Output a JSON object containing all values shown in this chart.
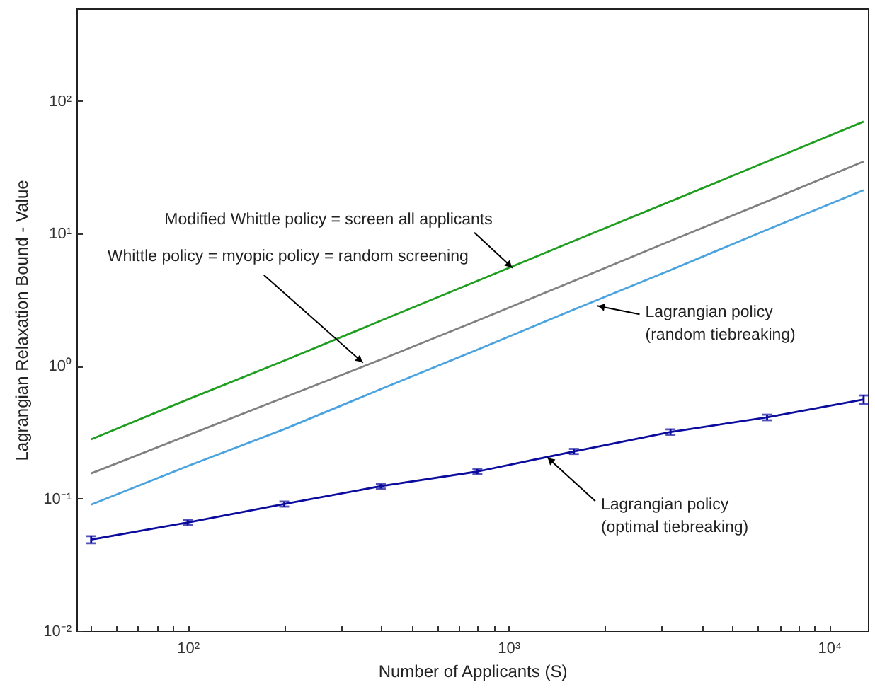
{
  "chart_data": {
    "type": "line",
    "xlabel": "Number of Applicants (S)",
    "ylabel": "Lagrangian Relaxation Bound - Value",
    "log": "xy",
    "legend": false,
    "grid": false,
    "x": [
      50,
      100,
      200,
      400,
      800,
      1600,
      3200,
      6400,
      12800
    ],
    "xlim": [
      45,
      13200
    ],
    "xticks": [
      {
        "value": 50,
        "label": null
      },
      {
        "value": 60,
        "label": null
      },
      {
        "value": 70,
        "label": null
      },
      {
        "value": 80,
        "label": null
      },
      {
        "value": 90,
        "label": null
      },
      {
        "value": 100,
        "label": "10²"
      },
      {
        "value": 200,
        "label": null
      },
      {
        "value": 300,
        "label": null
      },
      {
        "value": 400,
        "label": null
      },
      {
        "value": 500,
        "label": null
      },
      {
        "value": 600,
        "label": null
      },
      {
        "value": 700,
        "label": null
      },
      {
        "value": 800,
        "label": null
      },
      {
        "value": 900,
        "label": null
      },
      {
        "value": 1000,
        "label": "10³"
      },
      {
        "value": 2000,
        "label": null
      },
      {
        "value": 3000,
        "label": null
      },
      {
        "value": 4000,
        "label": null
      },
      {
        "value": 5000,
        "label": null
      },
      {
        "value": 6000,
        "label": null
      },
      {
        "value": 7000,
        "label": null
      },
      {
        "value": 8000,
        "label": null
      },
      {
        "value": 9000,
        "label": null
      },
      {
        "value": 10000,
        "label": "10⁴"
      }
    ],
    "ylim": [
      0.01,
      500
    ],
    "yticks": [
      {
        "value": 0.01,
        "label": "10⁻²"
      },
      {
        "value": 0.1,
        "label": "10⁻¹"
      },
      {
        "value": 1,
        "label": "10⁰"
      },
      {
        "value": 10,
        "label": "10¹"
      },
      {
        "value": 100,
        "label": "10²"
      }
    ],
    "series": [
      {
        "color": "#1f9e1f",
        "values": [
          0.28,
          0.56,
          1.1,
          2.2,
          4.4,
          8.8,
          17.5,
          35,
          70
        ]
      },
      {
        "color": "#808080",
        "values": [
          0.155,
          0.3,
          0.58,
          1.12,
          2.2,
          4.4,
          8.8,
          17.5,
          35
        ]
      },
      {
        "color": "#4aa3de",
        "values": [
          0.09,
          0.176,
          0.334,
          0.67,
          1.33,
          2.67,
          5.3,
          10.7,
          21.3
        ]
      },
      {
        "color": "#0b0b9e",
        "values": [
          0.049,
          0.066,
          0.091,
          0.124,
          0.16,
          0.227,
          0.318,
          0.41,
          0.56
        ],
        "errors": [
          0.003,
          0.003,
          0.004,
          0.005,
          0.007,
          0.01,
          0.015,
          0.02,
          0.04
        ]
      }
    ],
    "annotations": [
      {
        "text": "Modified Whittle policy = screen all applicants",
        "x": 1030,
        "y": 5.5
      },
      {
        "text": "Whittle policy = myopic policy = random screening",
        "x": 352,
        "y": 1.06
      },
      {
        "text": "Lagrangian policy\n(random tiebreaking)",
        "x": 1890,
        "y": 2.85
      },
      {
        "text": "Lagrangian policy\n(optimal tiebreaking)",
        "x": 1320,
        "y": 0.205
      }
    ]
  }
}
